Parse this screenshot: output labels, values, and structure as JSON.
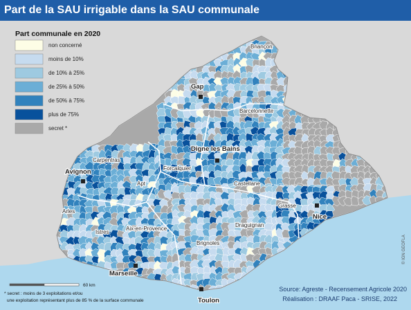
{
  "title": "Part de la SAU irrigable dans la SAU communale",
  "legend": {
    "title": "Part communale en 2020",
    "items": [
      {
        "label": "non concerné",
        "color": "#fdfde6"
      },
      {
        "label": "moins de 10%",
        "color": "#c6dbef"
      },
      {
        "label": "de 10% à 25%",
        "color": "#9ecae1"
      },
      {
        "label": "de 25% à 50%",
        "color": "#6baed6"
      },
      {
        "label": "de 50% à 75%",
        "color": "#3182bd"
      },
      {
        "label": "plus de 75%",
        "color": "#08519c"
      },
      {
        "label": "secret *",
        "color": "#a9a9a9"
      }
    ]
  },
  "cities": [
    {
      "name": "Briançon",
      "major": false
    },
    {
      "name": "Gap",
      "major": true
    },
    {
      "name": "Barcelonnette",
      "major": false
    },
    {
      "name": "Digne les Bains",
      "major": true
    },
    {
      "name": "Carpentras",
      "major": false
    },
    {
      "name": "Forcalquier",
      "major": false
    },
    {
      "name": "Avignon",
      "major": true
    },
    {
      "name": "Apt",
      "major": false
    },
    {
      "name": "Castellane",
      "major": false
    },
    {
      "name": "Arles",
      "major": false
    },
    {
      "name": "Grasse",
      "major": false
    },
    {
      "name": "Nice",
      "major": true
    },
    {
      "name": "Istres",
      "major": false
    },
    {
      "name": "Aix-en-Provence",
      "major": false
    },
    {
      "name": "Draguignan",
      "major": false
    },
    {
      "name": "Brignoles",
      "major": false
    },
    {
      "name": "Marseille",
      "major": true
    },
    {
      "name": "Toulon",
      "major": true
    }
  ],
  "scale_label": "60 km",
  "footnote": [
    "* secret : moins de 3 exploitations et/ou",
    "une exploitation représentant plus de 85 % de la surface communale"
  ],
  "source_lines": [
    "Source: Agreste - Recensement Agricole 2020",
    "Réalisation : DRAAF Paca - SRISE, 2022"
  ],
  "credit": "© IGN GEOFLA",
  "colors": {
    "title_bg": "#1f5ea8",
    "sea": "#aed8ee",
    "outside_land": "#d9d9d9",
    "borders": "#ffffff"
  }
}
